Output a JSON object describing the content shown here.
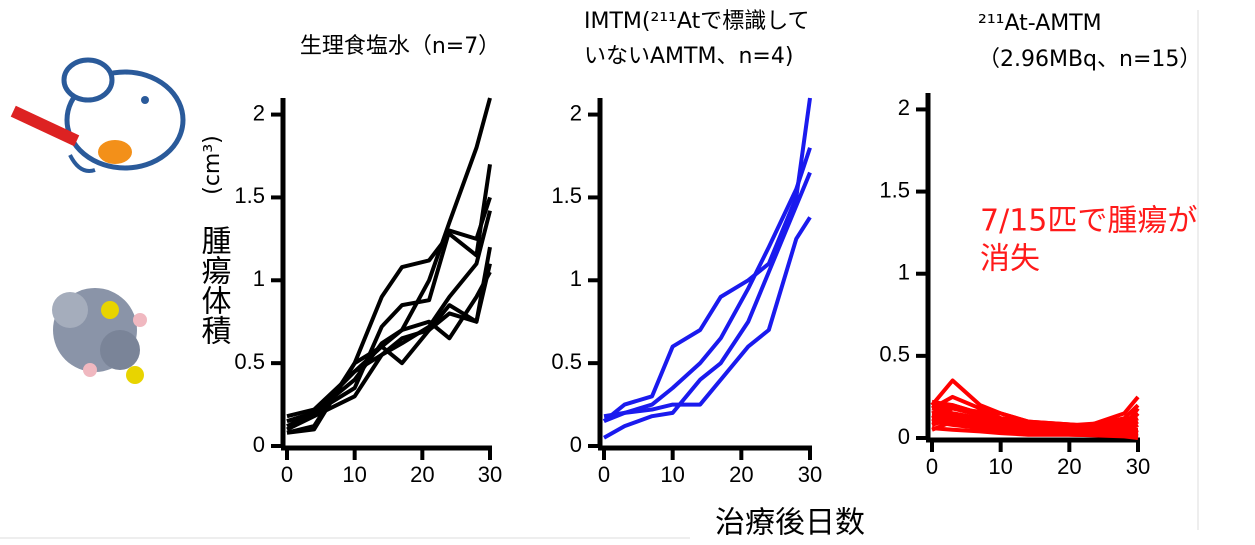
{
  "chart_data": [
    {
      "type": "line",
      "title": [
        "生理食塩水（n=7）"
      ],
      "color": "#000000",
      "y_label": [
        "(cm³)",
        "腫瘍体積"
      ],
      "x": [
        0,
        4,
        10,
        14,
        17,
        21,
        24,
        28,
        30
      ],
      "series": [
        {
          "values": [
            0.15,
            0.2,
            0.45,
            0.6,
            0.7,
            1.0,
            1.35,
            1.8,
            2.1
          ]
        },
        {
          "values": [
            0.08,
            0.1,
            0.5,
            0.9,
            1.08,
            1.12,
            1.28,
            1.15,
            1.7
          ]
        },
        {
          "values": [
            0.12,
            0.2,
            0.35,
            0.72,
            0.85,
            0.88,
            1.3,
            1.25,
            1.5
          ]
        },
        {
          "values": [
            0.18,
            0.22,
            0.45,
            0.55,
            0.62,
            0.72,
            0.9,
            1.1,
            1.42
          ]
        },
        {
          "values": [
            0.08,
            0.12,
            0.5,
            0.6,
            0.5,
            0.7,
            0.85,
            0.75,
            1.2
          ]
        },
        {
          "values": [
            0.15,
            0.2,
            0.4,
            0.62,
            0.7,
            0.75,
            0.65,
            0.9,
            1.05
          ]
        },
        {
          "values": [
            0.1,
            0.18,
            0.3,
            0.55,
            0.65,
            0.7,
            0.8,
            0.75,
            1.1
          ]
        }
      ],
      "xlim": [
        0,
        30
      ],
      "xticks": [
        0,
        10,
        20,
        30
      ],
      "ylim": [
        0,
        2.1
      ],
      "yticks": [
        0,
        0.5,
        1,
        1.5,
        2
      ]
    },
    {
      "type": "line",
      "title": [
        "IMTM(²¹¹Atで標識して",
        "いないAMTM、n=4)"
      ],
      "color": "#1a1aee",
      "x_label": "治療後日数",
      "x": [
        0,
        3,
        7,
        10,
        14,
        17,
        21,
        24,
        28,
        30
      ],
      "series": [
        {
          "values": [
            0.15,
            0.25,
            0.3,
            0.6,
            0.7,
            0.9,
            1.0,
            1.1,
            1.5,
            2.1
          ]
        },
        {
          "values": [
            0.18,
            0.2,
            0.25,
            0.35,
            0.5,
            0.65,
            0.95,
            1.2,
            1.55,
            1.8
          ]
        },
        {
          "values": [
            0.05,
            0.12,
            0.18,
            0.2,
            0.4,
            0.5,
            0.75,
            1.05,
            1.45,
            1.65
          ]
        },
        {
          "values": [
            0.15,
            0.2,
            0.22,
            0.25,
            0.25,
            0.4,
            0.6,
            0.7,
            1.25,
            1.38
          ]
        }
      ],
      "xlim": [
        0,
        30
      ],
      "xticks": [
        0,
        10,
        20,
        30
      ],
      "ylim": [
        0,
        2.1
      ],
      "yticks": [
        0,
        0.5,
        1,
        1.5,
        2
      ]
    },
    {
      "type": "line",
      "title": [
        "²¹¹At-AMTM",
        "（2.96MBq、n=15）"
      ],
      "color": "#ff0000",
      "annotation": [
        "7/15匹で腫瘍が",
        "消失"
      ],
      "x": [
        0,
        3,
        7,
        10,
        14,
        21,
        28,
        30
      ],
      "series": [
        {
          "values": [
            0.2,
            0.35,
            0.2,
            0.15,
            0.1,
            0.05,
            0.15,
            0.25
          ]
        },
        {
          "values": [
            0.18,
            0.25,
            0.18,
            0.12,
            0.08,
            0.06,
            0.12,
            0.2
          ]
        },
        {
          "values": [
            0.15,
            0.2,
            0.15,
            0.15,
            0.1,
            0.08,
            0.1,
            0.15
          ]
        },
        {
          "values": [
            0.12,
            0.18,
            0.14,
            0.1,
            0.08,
            0.06,
            0.08,
            0.12
          ]
        },
        {
          "values": [
            0.1,
            0.15,
            0.12,
            0.08,
            0.06,
            0.04,
            0.06,
            0.1
          ]
        },
        {
          "values": [
            0.22,
            0.2,
            0.15,
            0.12,
            0.1,
            0.08,
            0.05,
            0.05
          ]
        },
        {
          "values": [
            0.08,
            0.12,
            0.1,
            0.06,
            0.04,
            0.03,
            0.04,
            0.08
          ]
        },
        {
          "values": [
            0.05,
            0.1,
            0.08,
            0.05,
            0.03,
            0.02,
            0.02,
            0.05
          ]
        },
        {
          "values": [
            0.15,
            0.14,
            0.12,
            0.1,
            0.08,
            0.06,
            0.05,
            0.03
          ]
        },
        {
          "values": [
            0.12,
            0.1,
            0.08,
            0.06,
            0.05,
            0.04,
            0.03,
            0.02
          ]
        },
        {
          "values": [
            0.2,
            0.18,
            0.16,
            0.12,
            0.08,
            0.05,
            0.03,
            0.01
          ]
        },
        {
          "values": [
            0.1,
            0.08,
            0.06,
            0.04,
            0.03,
            0.02,
            0.02,
            0.01
          ]
        },
        {
          "values": [
            0.06,
            0.05,
            0.04,
            0.03,
            0.02,
            0.02,
            0.01,
            0
          ]
        },
        {
          "values": [
            0.18,
            0.15,
            0.12,
            0.1,
            0.06,
            0.04,
            0.06,
            0.15
          ]
        },
        {
          "values": [
            0.14,
            0.12,
            0.1,
            0.08,
            0.06,
            0.05,
            0.07,
            0.18
          ]
        }
      ],
      "xlim": [
        0,
        30
      ],
      "xticks": [
        0,
        10,
        20,
        30
      ],
      "ylim": [
        0,
        2.1
      ],
      "yticks": [
        0,
        0.5,
        1,
        1.5,
        2
      ]
    }
  ]
}
